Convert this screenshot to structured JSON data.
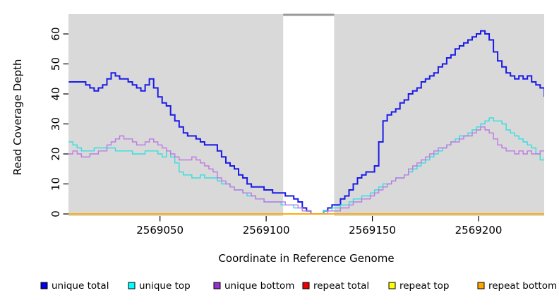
{
  "chart_data": {
    "type": "line",
    "subtype": "step-coverage-plot",
    "title": "",
    "xlabel": "Coordinate in Reference Genome",
    "ylabel": "Read Coverage Depth",
    "xlim": [
      2569006.9,
      2569230.9
    ],
    "ylim": [
      -0.7,
      66.6
    ],
    "x_ticks": [
      2569050,
      2569100,
      2569150,
      2569200
    ],
    "y_ticks": [
      0,
      10,
      20,
      30,
      40,
      50,
      60
    ],
    "grid": false,
    "legend_position": "bottom",
    "plot_background": "#d9d9d9",
    "figure_background": "#ffffff",
    "gap_band": {
      "x_start": 2569108,
      "x_end": 2569132,
      "fill": "#ffffff",
      "cap_color": "#999999"
    },
    "x_start": 2569007,
    "x_step": 2,
    "series": [
      {
        "name": "unique total",
        "line_color": "#1a1ae8",
        "swatch_color": "#0000e0",
        "line_width": 2,
        "values": [
          44,
          44,
          44,
          44,
          43,
          42,
          41,
          42,
          43,
          45,
          47,
          46,
          45,
          45,
          44,
          43,
          42,
          41,
          43,
          45,
          42,
          39,
          37,
          36,
          33,
          31,
          29,
          27,
          26,
          26,
          25,
          24,
          23,
          23,
          23,
          21,
          19,
          17,
          16,
          15,
          13,
          12,
          10,
          9,
          9,
          9,
          8,
          8,
          7,
          7,
          7,
          6,
          6,
          5,
          4,
          2,
          1,
          0,
          0,
          0,
          1,
          2,
          3,
          3,
          5,
          6,
          8,
          10,
          12,
          13,
          14,
          14,
          16,
          24,
          31,
          33,
          34,
          35,
          37,
          38,
          40,
          41,
          42,
          44,
          45,
          46,
          47,
          49,
          50,
          52,
          53,
          55,
          56,
          57,
          58,
          59,
          60,
          61,
          60,
          58,
          54,
          51,
          49,
          47,
          46,
          45,
          46,
          45,
          46,
          44,
          43,
          42,
          39
        ]
      },
      {
        "name": "unique top",
        "line_color": "#35dede",
        "swatch_color": "#00ffff",
        "line_width": 1.4,
        "values": [
          24,
          23,
          22,
          21,
          21,
          21,
          22,
          22,
          22,
          22,
          22,
          21,
          21,
          21,
          21,
          20,
          20,
          20,
          21,
          21,
          21,
          20,
          19,
          21,
          19,
          17,
          14,
          13,
          13,
          12,
          12,
          13,
          12,
          12,
          12,
          11,
          10,
          10,
          9,
          8,
          8,
          7,
          6,
          6,
          5,
          5,
          4,
          4,
          4,
          4,
          3,
          3,
          3,
          2,
          2,
          1,
          1,
          0,
          0,
          0,
          1,
          1,
          2,
          2,
          3,
          3,
          4,
          5,
          5,
          6,
          6,
          7,
          8,
          9,
          10,
          10,
          11,
          12,
          12,
          13,
          14,
          15,
          16,
          17,
          18,
          19,
          20,
          21,
          22,
          23,
          24,
          25,
          26,
          26,
          27,
          28,
          29,
          30,
          31,
          32,
          31,
          31,
          30,
          28,
          27,
          26,
          25,
          24,
          23,
          22,
          20,
          18,
          19
        ]
      },
      {
        "name": "unique bottom",
        "line_color": "#bd7ae3",
        "swatch_color": "#9932cc",
        "line_width": 1.4,
        "values": [
          20,
          21,
          20,
          19,
          19,
          20,
          20,
          21,
          21,
          23,
          24,
          25,
          26,
          25,
          25,
          24,
          23,
          23,
          24,
          25,
          24,
          23,
          22,
          21,
          20,
          19,
          18,
          18,
          18,
          19,
          18,
          17,
          16,
          15,
          14,
          12,
          11,
          10,
          9,
          8,
          8,
          7,
          7,
          6,
          5,
          5,
          4,
          4,
          4,
          4,
          4,
          3,
          3,
          3,
          2,
          1,
          1,
          0,
          0,
          0,
          0,
          1,
          1,
          1,
          2,
          2,
          3,
          4,
          4,
          5,
          5,
          6,
          7,
          8,
          9,
          10,
          11,
          12,
          12,
          13,
          15,
          16,
          17,
          18,
          19,
          20,
          21,
          22,
          22,
          23,
          24,
          24,
          25,
          26,
          26,
          27,
          28,
          29,
          28,
          27,
          25,
          23,
          22,
          21,
          21,
          20,
          21,
          20,
          21,
          20,
          20,
          21,
          21
        ]
      },
      {
        "name": "repeat total",
        "line_color": "#ee0000",
        "swatch_color": "#ee0000",
        "line_width": 1.4,
        "constant": 0
      },
      {
        "name": "repeat top",
        "line_color": "#ffff00",
        "swatch_color": "#ffff00",
        "line_width": 1.4,
        "constant": 0
      },
      {
        "name": "repeat bottom",
        "line_color": "#ffa500",
        "swatch_color": "#ffa500",
        "line_width": 1.6,
        "constant": 0
      }
    ]
  }
}
